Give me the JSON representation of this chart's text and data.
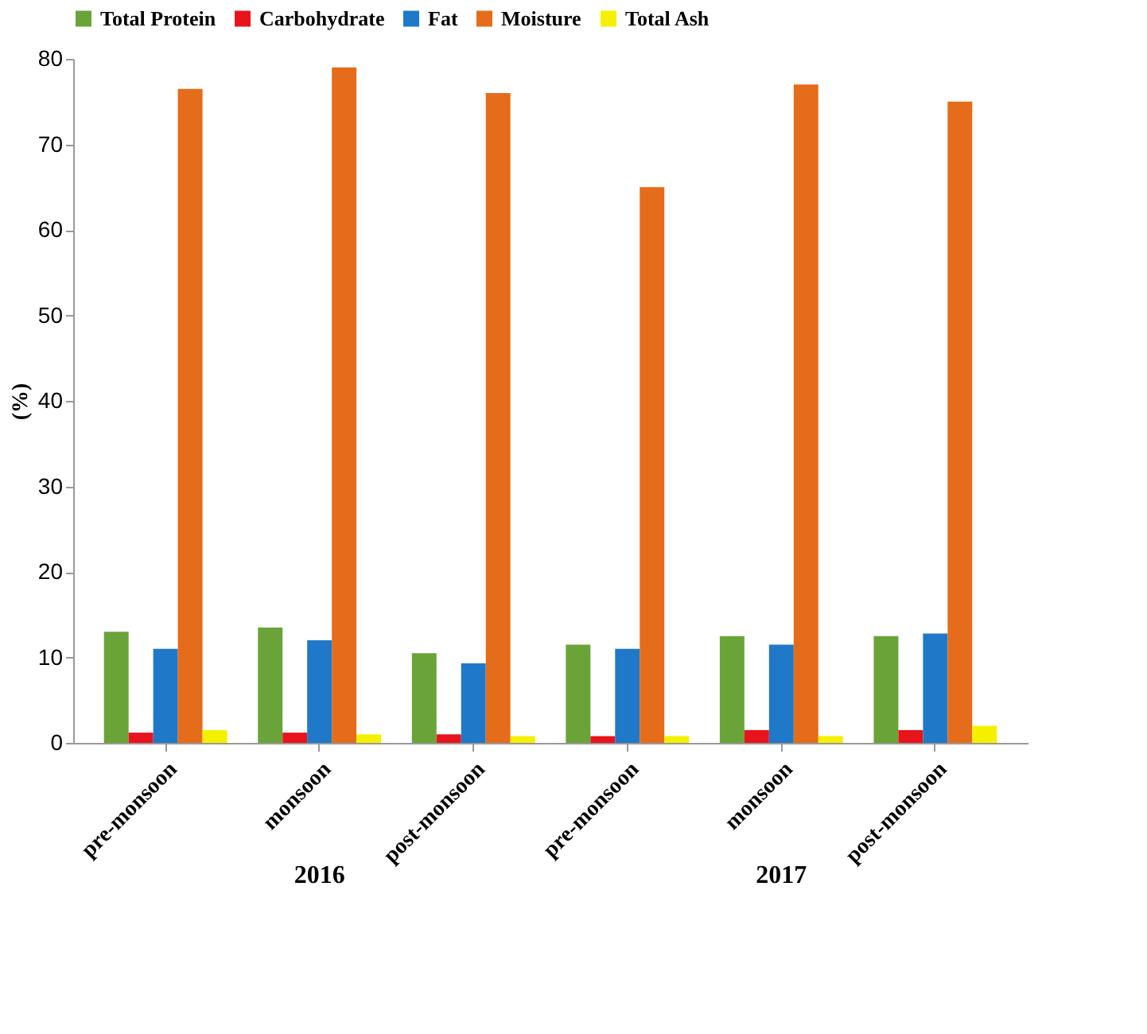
{
  "chart_data": {
    "type": "bar",
    "ylabel": "(%)",
    "categories": [
      "pre-monsoon",
      "monsoon",
      "post-monsoon",
      "pre-monsoon",
      "monsoon",
      "post-monsoon"
    ],
    "series": [
      {
        "name": "Total Protein",
        "color": "#6aa438",
        "values": [
          13,
          13.5,
          10.5,
          11.5,
          12.5,
          12.5
        ]
      },
      {
        "name": "Carbohydrate",
        "color": "#e8141c",
        "values": [
          1.2,
          1.2,
          1.0,
          0.8,
          1.5,
          1.5
        ]
      },
      {
        "name": "Fat",
        "color": "#1f78c8",
        "values": [
          11,
          12,
          9.3,
          11,
          11.5,
          12.8
        ]
      },
      {
        "name": "Moisture",
        "color": "#e46c1a",
        "values": [
          76.5,
          79,
          76,
          65,
          77,
          75
        ]
      },
      {
        "name": "Total Ash",
        "color": "#f5f000",
        "values": [
          1.5,
          1,
          0.8,
          0.8,
          0.8,
          2
        ]
      }
    ],
    "ylim": [
      0,
      80
    ],
    "yticks": [
      0,
      10,
      20,
      30,
      40,
      50,
      60,
      70,
      80
    ],
    "grid": false,
    "legend": "top",
    "annotations": [
      "2016",
      "2017"
    ]
  }
}
